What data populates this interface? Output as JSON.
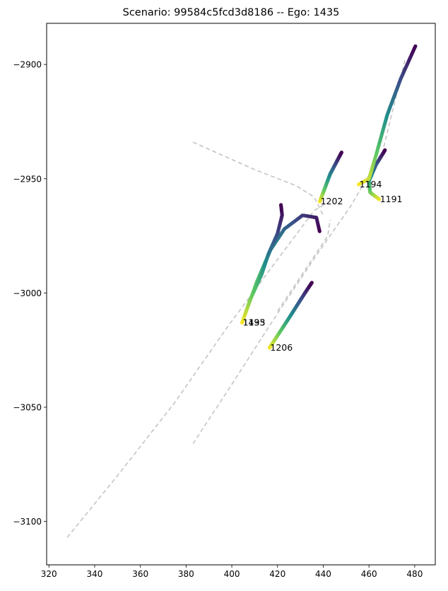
{
  "chart_data": {
    "type": "scatter",
    "title": "Scenario: 99584c5fcd3d8186 -- Ego: 1435",
    "xlabel": "",
    "ylabel": "",
    "xlim": [
      319,
      489
    ],
    "ylim": [
      -3119,
      -2882
    ],
    "xticks": [
      320,
      340,
      360,
      380,
      400,
      420,
      440,
      460,
      480
    ],
    "yticks": [
      -2900,
      -2950,
      -3000,
      -3050,
      -3100
    ],
    "xtick_labels": [
      "320",
      "340",
      "360",
      "380",
      "400",
      "420",
      "440",
      "460",
      "480"
    ],
    "ytick_labels": [
      "−2900",
      "−2950",
      "−3000",
      "−3050",
      "−3100"
    ],
    "grid": false,
    "colormap": "viridis",
    "lanes": [
      {
        "points": [
          [
            328,
            -3107
          ],
          [
            350,
            -3080
          ],
          [
            375,
            -3048
          ],
          [
            398,
            -3015
          ],
          [
            418,
            -2988
          ],
          [
            436,
            -2964
          ],
          [
            441,
            -2961
          ]
        ]
      },
      {
        "points": [
          [
            383,
            -3066
          ],
          [
            400,
            -3040
          ],
          [
            418,
            -3012
          ],
          [
            436,
            -2985
          ],
          [
            452,
            -2962
          ],
          [
            466,
            -2938
          ],
          [
            476,
            -2897
          ]
        ]
      },
      {
        "points": [
          [
            383,
            -2934
          ],
          [
            410,
            -2946
          ],
          [
            428,
            -2953
          ],
          [
            436,
            -2958
          ],
          [
            440,
            -2966
          ]
        ]
      },
      {
        "points": [
          [
            420,
            -3008
          ],
          [
            430,
            -2993
          ],
          [
            442,
            -2975
          ],
          [
            443,
            -2968
          ]
        ]
      }
    ],
    "tracks": [
      {
        "id": "1435",
        "label": "1435",
        "points": [
          [
            404.5,
            -3013
          ],
          [
            411,
            -2995
          ],
          [
            417,
            -2981
          ],
          [
            423,
            -2972
          ],
          [
            431,
            -2966
          ],
          [
            437,
            -2967
          ],
          [
            438.4,
            -2973
          ]
        ]
      },
      {
        "id": "1193",
        "label": "1193",
        "points": [
          [
            404.5,
            -3013
          ],
          [
            408,
            -3003
          ],
          [
            413,
            -2992
          ],
          [
            416,
            -2983
          ],
          [
            420,
            -2974
          ],
          [
            422,
            -2966
          ],
          [
            421.5,
            -2961.5
          ]
        ]
      },
      {
        "id": "1202",
        "label": "1202",
        "points": [
          [
            438.5,
            -2960
          ],
          [
            443,
            -2948
          ],
          [
            448,
            -2938.5
          ]
        ]
      },
      {
        "id": "1206",
        "label": "1206",
        "points": [
          [
            416.5,
            -3024
          ],
          [
            425,
            -3011
          ],
          [
            432,
            -3000
          ],
          [
            435,
            -2995.5
          ]
        ]
      },
      {
        "id": "1191",
        "label": "1191",
        "points": [
          [
            464.5,
            -2959
          ],
          [
            460.5,
            -2956
          ],
          [
            460,
            -2951
          ],
          [
            463,
            -2944
          ],
          [
            467,
            -2937.5
          ]
        ]
      },
      {
        "id": "1194",
        "label": "1194",
        "points": [
          [
            455.5,
            -2952.5
          ],
          [
            460,
            -2950
          ],
          [
            463,
            -2940
          ],
          [
            468,
            -2922
          ],
          [
            474,
            -2906
          ],
          [
            480.3,
            -2892
          ]
        ]
      }
    ]
  }
}
